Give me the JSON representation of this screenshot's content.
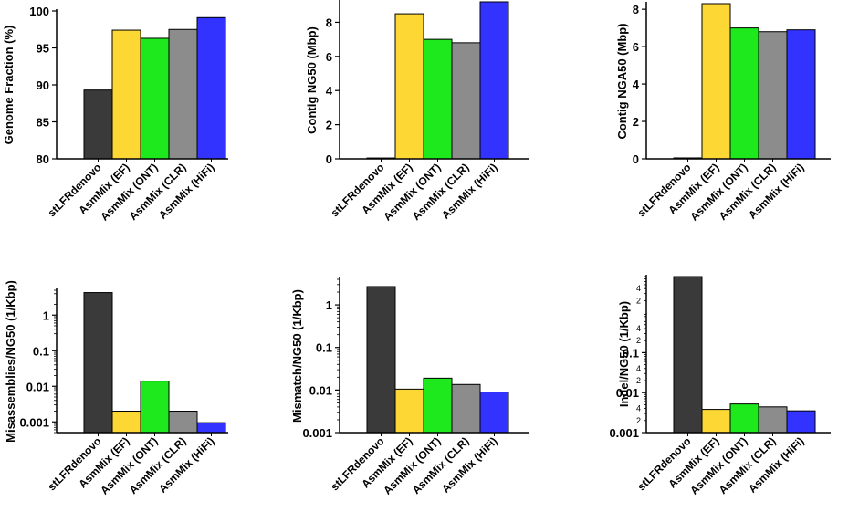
{
  "chart_data": [
    {
      "id": "genome-fraction",
      "type": "bar",
      "scale": "linear",
      "ylabel": "Genome Fraction (%)",
      "ylim": [
        80,
        100
      ],
      "yticks": [
        80,
        85,
        90,
        95,
        100
      ],
      "categories": [
        "stLFRdenovo",
        "AsmMix (EF)",
        "AsmMix (ONT)",
        "AsmMix (CLR)",
        "AsmMix (HiFi)"
      ],
      "values": [
        89.3,
        97.4,
        96.3,
        97.5,
        99.1
      ]
    },
    {
      "id": "contig-ng50",
      "type": "bar",
      "scale": "linear",
      "ylabel": "Contig NG50 (Mbp)",
      "ylim": [
        0,
        9.2
      ],
      "yticks": [
        0,
        2,
        4,
        6,
        8
      ],
      "categories": [
        "stLFRdenovo",
        "AsmMix (EF)",
        "AsmMix (ONT)",
        "AsmMix (CLR)",
        "AsmMix (HiFi)"
      ],
      "values": [
        0.05,
        8.5,
        7.0,
        6.8,
        9.2
      ]
    },
    {
      "id": "contig-nga50",
      "type": "bar",
      "scale": "linear",
      "ylabel": "Contig NGA50 (Mbp)",
      "ylim": [
        0,
        8.3
      ],
      "yticks": [
        0,
        2,
        4,
        6,
        8
      ],
      "categories": [
        "stLFRdenovo",
        "AsmMix (EF)",
        "AsmMix (ONT)",
        "AsmMix (CLR)",
        "AsmMix (HiFi)"
      ],
      "values": [
        0.05,
        8.3,
        7.0,
        6.8,
        6.9
      ]
    },
    {
      "id": "misassemblies-ng50",
      "type": "bar",
      "scale": "log",
      "ylabel": "Misassemblies/NG50 (1/Kbp)",
      "ylim": [
        0.0005,
        5
      ],
      "yticks": [
        0.001,
        0.01,
        0.1,
        1
      ],
      "yticklabels": [
        "0.001",
        "0.01",
        "0.1",
        "1"
      ],
      "categories": [
        "stLFRdenovo",
        "AsmMix (EF)",
        "AsmMix (ONT)",
        "AsmMix (CLR)",
        "AsmMix (HiFi)"
      ],
      "values": [
        4.3,
        0.002,
        0.014,
        0.002,
        0.00095
      ]
    },
    {
      "id": "mismatch-ng50",
      "type": "bar",
      "scale": "log",
      "ylabel": "Mismatch/NG50 (1/Kbp)",
      "ylim": [
        0.001,
        4
      ],
      "yticks": [
        0.001,
        0.01,
        0.1,
        1
      ],
      "yticklabels": [
        "0.001",
        "0.01",
        "0.1",
        "1"
      ],
      "categories": [
        "stLFRdenovo",
        "AsmMix (EF)",
        "AsmMix (ONT)",
        "AsmMix (CLR)",
        "AsmMix (HiFi)"
      ],
      "values": [
        2.7,
        0.0105,
        0.019,
        0.0135,
        0.009
      ]
    },
    {
      "id": "indel-ng50",
      "type": "bar",
      "scale": "log",
      "ylabel": "Indel/NG50 (1/Kbp)",
      "ylim": [
        0.001,
        8
      ],
      "yticks": [
        0.001,
        0.01,
        0.1
      ],
      "yticklabels": [
        "0.001",
        "0.01",
        "0.1"
      ],
      "minor_ticks": [
        0.002,
        0.004,
        0.02,
        0.04,
        0.2,
        0.4,
        2,
        4
      ],
      "minor_ticklabels": [
        "2",
        "4",
        "2",
        "4",
        "2",
        "4",
        "2",
        "4"
      ],
      "categories": [
        "stLFRdenovo",
        "AsmMix (EF)",
        "AsmMix (ONT)",
        "AsmMix (CLR)",
        "AsmMix (HiFi)"
      ],
      "values": [
        8.0,
        0.0038,
        0.0052,
        0.0044,
        0.0035
      ]
    }
  ],
  "colors": [
    "#3a3a3a",
    "#fdd835",
    "#1de91d",
    "#8c8c8c",
    "#3333ff"
  ]
}
